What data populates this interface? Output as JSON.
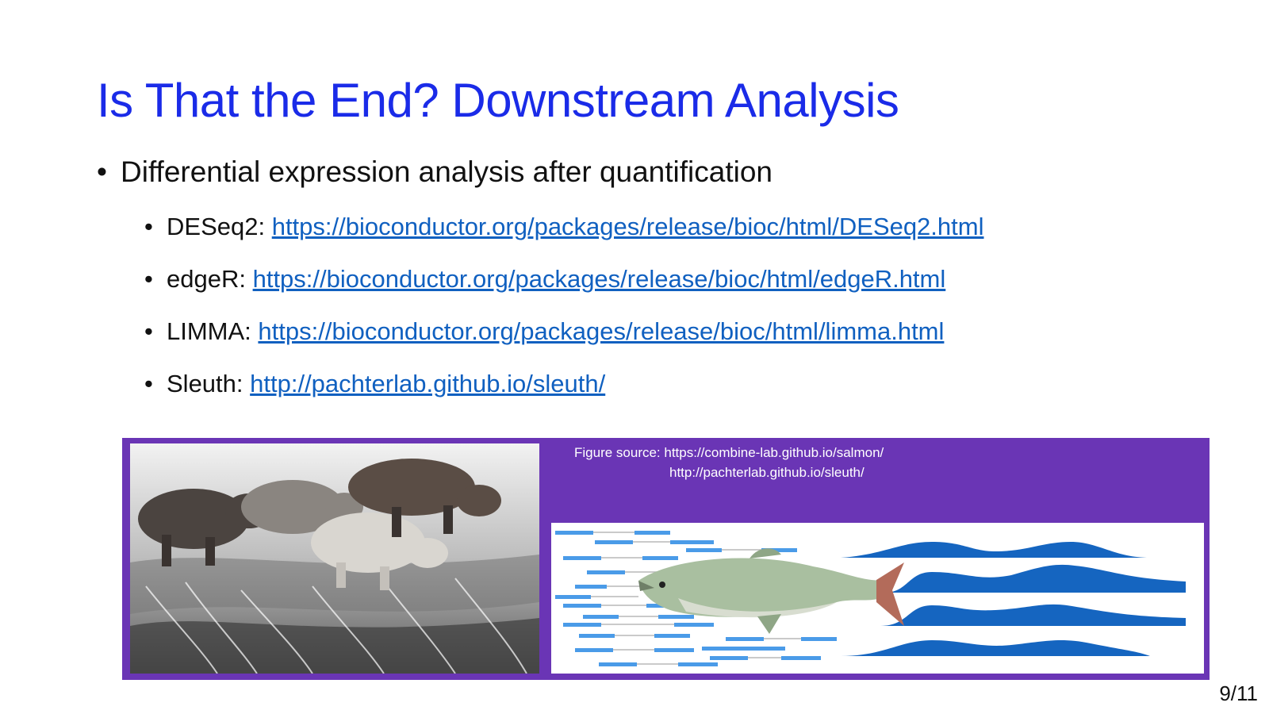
{
  "slide": {
    "title": "Is That the End? Downstream Analysis",
    "bullet": {
      "marker": "•",
      "text": "Differential expression analysis after quantification"
    },
    "sub_bullets": [
      {
        "marker": "•",
        "label": "DESeq2:",
        "link": "https://bioconductor.org/packages/release/bioc/html/DESeq2.html"
      },
      {
        "marker": "•",
        "label": "edgeR:",
        "link": "https://bioconductor.org/packages/release/bioc/html/edgeR.html"
      },
      {
        "marker": "•",
        "label": "LIMMA:",
        "link": "https://bioconductor.org/packages/release/bioc/html/limma.html"
      },
      {
        "marker": "•",
        "label": "Sleuth:",
        "link": "http://pachterlab.github.io/sleuth/"
      }
    ],
    "figure": {
      "source_line1": "Figure source: https://combine-lab.github.io/salmon/",
      "source_line2": "http://pachterlab.github.io/sleuth/",
      "background_color": "#6a35b5"
    },
    "page_number": "9/11"
  },
  "colors": {
    "title": "#1a2be8",
    "link": "#1060c0",
    "wave": "#1565c0",
    "read": "#4a9be8"
  }
}
